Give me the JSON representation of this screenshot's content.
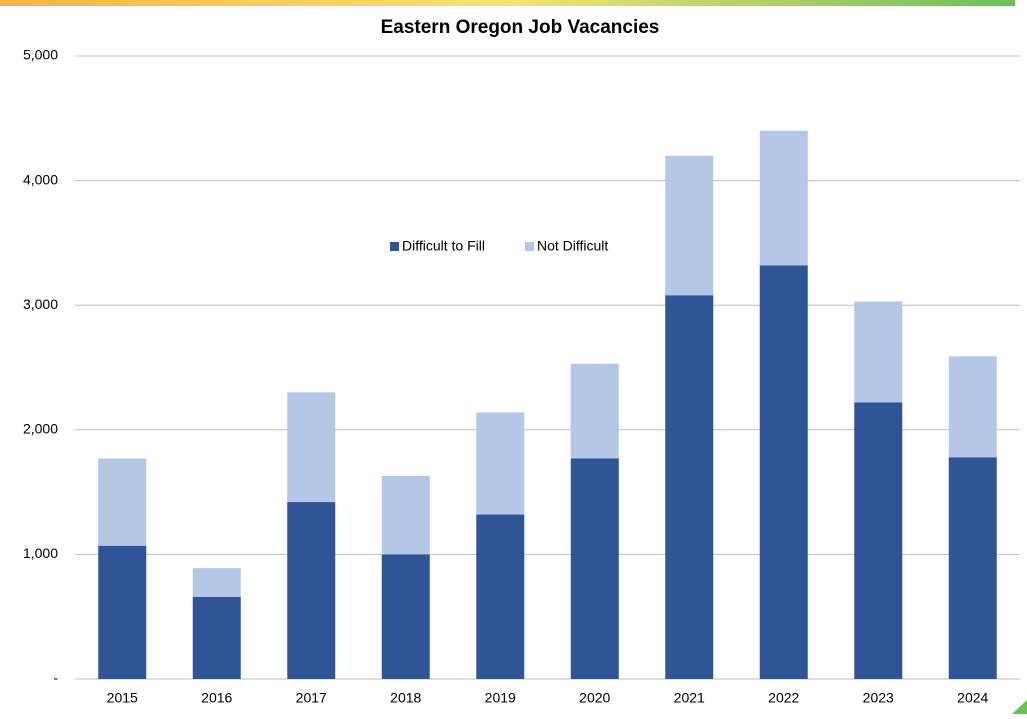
{
  "chart_data": {
    "type": "stacked_bar",
    "title": "Eastern Oregon Job Vacancies",
    "categories": [
      "2015",
      "2016",
      "2017",
      "2018",
      "2019",
      "2020",
      "2021",
      "2022",
      "2023",
      "2024"
    ],
    "series": [
      {
        "name": "Difficult to Fill",
        "color": "#2f5597",
        "values": [
          1070,
          660,
          1420,
          1000,
          1320,
          1770,
          3080,
          3320,
          2220,
          1780
        ]
      },
      {
        "name": "Not Difficult",
        "color": "#b4c7e7",
        "values": [
          700,
          230,
          880,
          630,
          820,
          760,
          1120,
          1080,
          810,
          810
        ]
      }
    ],
    "ylim": [
      0,
      5000
    ],
    "yticks": [
      {
        "value": 0,
        "label": "-"
      },
      {
        "value": 1000,
        "label": "1,000"
      },
      {
        "value": 2000,
        "label": "2,000"
      },
      {
        "value": 3000,
        "label": "3,000"
      },
      {
        "value": 4000,
        "label": "4,000"
      },
      {
        "value": 5000,
        "label": "5,000"
      }
    ],
    "grid": true,
    "legend": "center"
  }
}
